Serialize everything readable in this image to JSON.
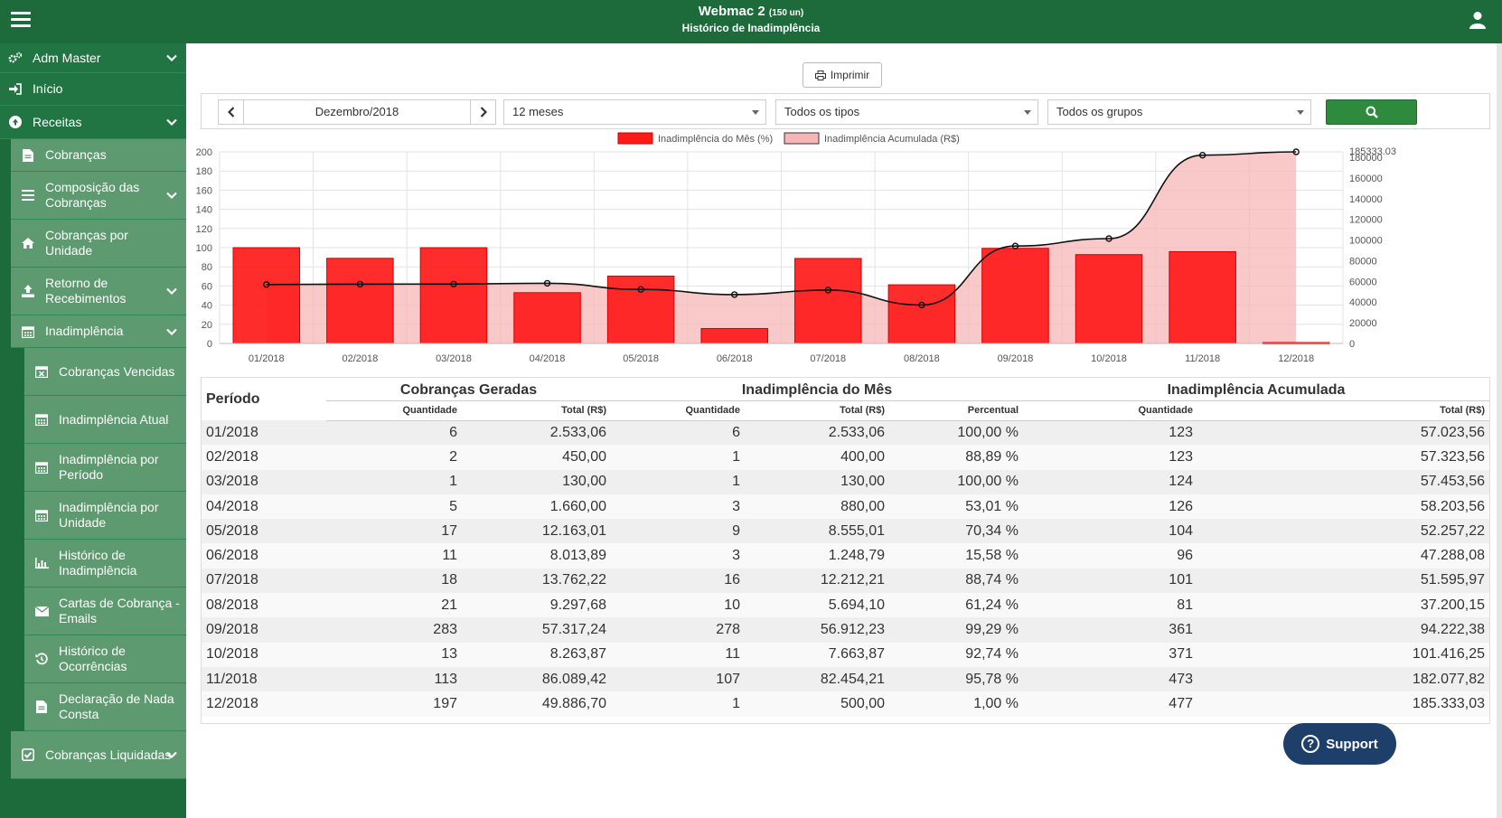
{
  "header": {
    "app_name": "Webmac 2",
    "app_units": "(150 un)",
    "page_title": "Histórico de Inadimplência"
  },
  "sidebar": {
    "items": [
      {
        "label": "Adm Master",
        "level": 0,
        "icon": "cogs-icon",
        "chevron": true
      },
      {
        "label": "Início",
        "level": 0,
        "icon": "sign-in-icon",
        "chevron": false
      },
      {
        "label": "Receitas",
        "level": 0,
        "icon": "circle-arrow-up-icon",
        "chevron": true
      },
      {
        "label": "Cobranças",
        "level": 1,
        "icon": "file-icon",
        "chevron": false
      },
      {
        "label": "Composição das Cobranças",
        "level": 1,
        "icon": "list-icon",
        "chevron": true
      },
      {
        "label": "Cobranças por Unidade",
        "level": 1,
        "icon": "home-icon",
        "chevron": false
      },
      {
        "label": "Retorno de Recebimentos",
        "level": 1,
        "icon": "upload-icon",
        "chevron": true
      },
      {
        "label": "Inadimplência",
        "level": 1,
        "icon": "calendar-icon",
        "chevron": true
      },
      {
        "label": "Cobranças Vencidas",
        "level": 2,
        "icon": "calendar-x-icon",
        "chevron": false
      },
      {
        "label": "Inadimplência Atual",
        "level": 2,
        "icon": "calendar-icon",
        "chevron": false
      },
      {
        "label": "Inadimplência por Período",
        "level": 2,
        "icon": "calendar-icon",
        "chevron": false
      },
      {
        "label": "Inadimplência por Unidade",
        "level": 2,
        "icon": "calendar-icon",
        "chevron": false
      },
      {
        "label": "Histórico de Inadimplência",
        "level": 2,
        "icon": "bar-chart-icon",
        "chevron": false
      },
      {
        "label": "Cartas de Cobrança - Emails",
        "level": 2,
        "icon": "envelope-icon",
        "chevron": false
      },
      {
        "label": "Histórico de Ocorrências",
        "level": 2,
        "icon": "history-icon",
        "chevron": false
      },
      {
        "label": "Declaração de Nada Consta",
        "level": 2,
        "icon": "file-icon",
        "chevron": false
      },
      {
        "label": "Cobranças Liquidadas",
        "level": 1,
        "icon": "check-square-icon",
        "chevron": true
      }
    ]
  },
  "toolbar": {
    "print_label": "Imprimir",
    "month": "Dezembro/2018",
    "period_select": "12 meses",
    "type_select": "Todos os tipos",
    "group_select": "Todos os grupos"
  },
  "chart_data": {
    "type": "bar",
    "categories": [
      "01/2018",
      "02/2018",
      "03/2018",
      "04/2018",
      "05/2018",
      "06/2018",
      "07/2018",
      "08/2018",
      "09/2018",
      "10/2018",
      "11/2018",
      "12/2018"
    ],
    "series": [
      {
        "name": "Inadimplência do Mês (%)",
        "type": "bar",
        "axis": "left",
        "color": "#ff1a1a",
        "values": [
          100.0,
          88.89,
          100.0,
          53.01,
          70.34,
          15.58,
          88.74,
          61.24,
          99.29,
          92.74,
          95.78,
          1.0
        ]
      },
      {
        "name": "Inadimplência Acumulada (R$)",
        "type": "area",
        "axis": "right",
        "color": "#f7b5b5",
        "values": [
          57023.56,
          57323.56,
          57453.56,
          58203.56,
          52257.22,
          47288.08,
          51595.97,
          37200.15,
          94222.38,
          101416.25,
          182077.82,
          185333.03
        ]
      }
    ],
    "ylim_left": [
      0,
      200
    ],
    "yticks_left": [
      0,
      20,
      40,
      60,
      80,
      100,
      120,
      140,
      160,
      180,
      200
    ],
    "ylim_right": [
      0,
      185333.03
    ],
    "yticks_right": [
      0,
      20000,
      40000,
      60000,
      80000,
      100000,
      120000,
      140000,
      160000,
      180000
    ],
    "right_max_label": "185333.03",
    "grid": true,
    "legend": "top-center"
  },
  "table": {
    "periodo_header": "Período",
    "groups": [
      "Cobranças Geradas",
      "Inadimplência do Mês",
      "Inadimplência Acumulada"
    ],
    "subheaders": [
      "Quantidade",
      "Total (R$)",
      "Quantidade",
      "Total (R$)",
      "Percentual",
      "Quantidade",
      "Total (R$)"
    ],
    "rows": [
      [
        "01/2018",
        "6",
        "2.533,06",
        "6",
        "2.533,06",
        "100,00 %",
        "123",
        "57.023,56"
      ],
      [
        "02/2018",
        "2",
        "450,00",
        "1",
        "400,00",
        "88,89 %",
        "123",
        "57.323,56"
      ],
      [
        "03/2018",
        "1",
        "130,00",
        "1",
        "130,00",
        "100,00 %",
        "124",
        "57.453,56"
      ],
      [
        "04/2018",
        "5",
        "1.660,00",
        "3",
        "880,00",
        "53,01 %",
        "126",
        "58.203,56"
      ],
      [
        "05/2018",
        "17",
        "12.163,01",
        "9",
        "8.555,01",
        "70,34 %",
        "104",
        "52.257,22"
      ],
      [
        "06/2018",
        "11",
        "8.013,89",
        "3",
        "1.248,79",
        "15,58 %",
        "96",
        "47.288,08"
      ],
      [
        "07/2018",
        "18",
        "13.762,22",
        "16",
        "12.212,21",
        "88,74 %",
        "101",
        "51.595,97"
      ],
      [
        "08/2018",
        "21",
        "9.297,68",
        "10",
        "5.694,10",
        "61,24 %",
        "81",
        "37.200,15"
      ],
      [
        "09/2018",
        "283",
        "57.317,24",
        "278",
        "56.912,23",
        "99,29 %",
        "361",
        "94.222,38"
      ],
      [
        "10/2018",
        "13",
        "8.263,87",
        "11",
        "7.663,87",
        "92,74 %",
        "371",
        "101.416,25"
      ],
      [
        "11/2018",
        "113",
        "86.089,42",
        "107",
        "82.454,21",
        "95,78 %",
        "473",
        "182.077,82"
      ],
      [
        "12/2018",
        "197",
        "49.886,70",
        "1",
        "500,00",
        "1,00 %",
        "477",
        "185.333,03"
      ]
    ]
  },
  "support": {
    "label": "Support"
  }
}
